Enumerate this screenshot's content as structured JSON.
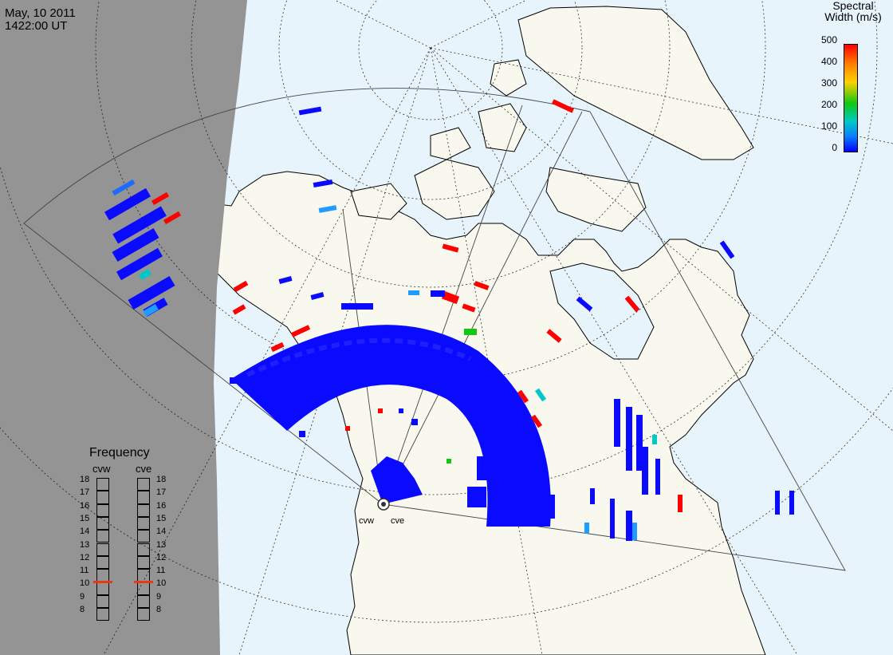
{
  "header": {
    "date": "May, 10 2011",
    "time": "1422:00 UT"
  },
  "colorbar": {
    "title_line1": "Spectral",
    "title_line2": "Width (m/s)",
    "ticks": [
      "500",
      "400",
      "300",
      "200",
      "100",
      "0"
    ],
    "colors": [
      "#ff0000",
      "#ff7f00",
      "#ffd000",
      "#10c810",
      "#00c8c8",
      "#0a7dff",
      "#0000ff"
    ]
  },
  "frequency_panel": {
    "title": "Frequency",
    "columns": [
      {
        "name": "cvw",
        "value_mhz": 11
      },
      {
        "name": "cve",
        "value_mhz": 11
      }
    ],
    "scale": [
      "18",
      "17",
      "16",
      "15",
      "14",
      "13",
      "12",
      "11",
      "10",
      "9",
      "8"
    ]
  },
  "radar_sites": {
    "labels": [
      "cvw",
      "cve"
    ]
  },
  "map_colors": {
    "night": "#949494",
    "ocean": "#e8f4fc",
    "land": "#f8f8ee",
    "coast": "#000000",
    "scatter_main": "#0a0aff"
  }
}
